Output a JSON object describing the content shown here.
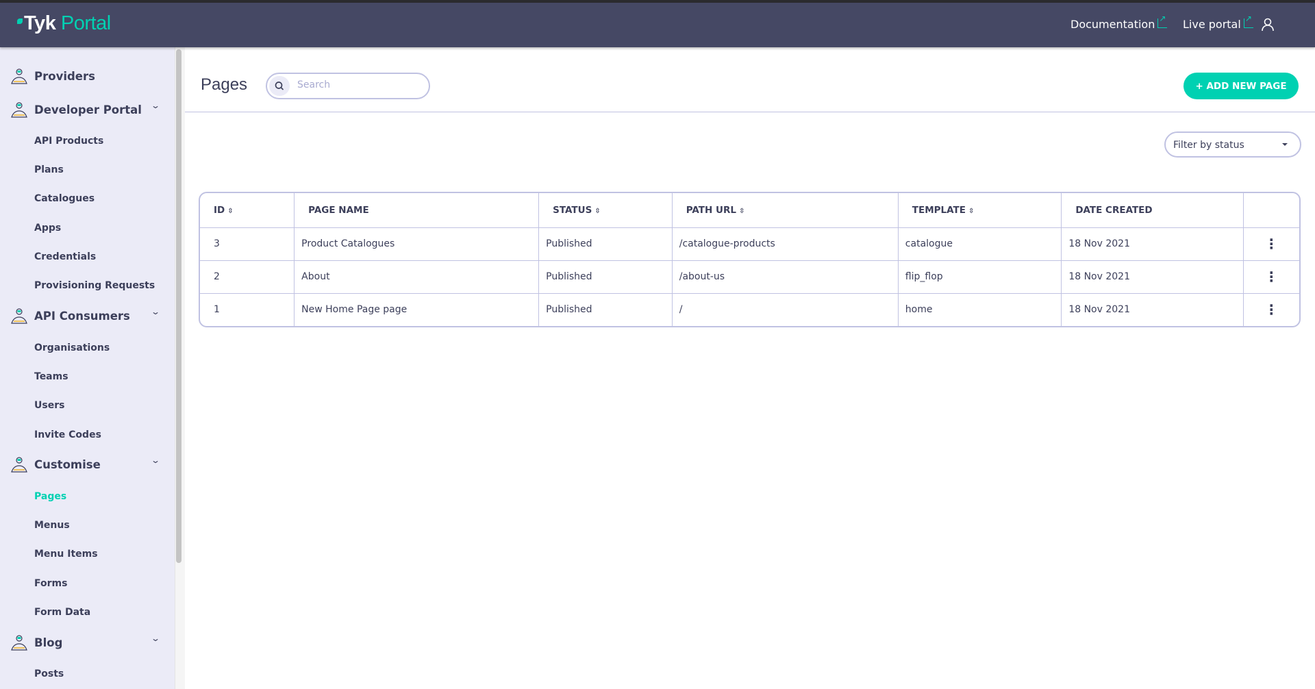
{
  "header": {
    "logo_text_1": "Tyk",
    "logo_text_2": "Portal",
    "documentation": "Documentation",
    "live_portal": "Live portal",
    "accent": "#00d1b2",
    "background": "#454864"
  },
  "sidebar": {
    "sections": [
      {
        "label": "Providers",
        "icon": "provider-hand-icon",
        "items": []
      },
      {
        "label": "Developer Portal",
        "icon": "developer-portal-icon",
        "items": [
          "API Products",
          "Plans",
          "Catalogues",
          "Apps",
          "Credentials",
          "Provisioning Requests"
        ]
      },
      {
        "label": "API Consumers",
        "icon": "consumers-network-icon",
        "items": [
          "Organisations",
          "Teams",
          "Users",
          "Invite Codes"
        ]
      },
      {
        "label": "Customise",
        "icon": "paintbrush-icon",
        "items": [
          "Pages",
          "Menus",
          "Menu Items",
          "Forms",
          "Form Data"
        ]
      },
      {
        "label": "Blog",
        "icon": "blog-writer-icon",
        "items": [
          "Posts"
        ]
      }
    ],
    "active": "Pages"
  },
  "main": {
    "title": "Pages",
    "search_placeholder": "Search",
    "add_button": "+ ADD NEW PAGE",
    "filter": "Filter by status",
    "table": {
      "columns": [
        {
          "label": "ID",
          "sortable": true
        },
        {
          "label": "PAGE NAME",
          "sortable": false
        },
        {
          "label": "STATUS",
          "sortable": true
        },
        {
          "label": "PATH URL",
          "sortable": true
        },
        {
          "label": "TEMPLATE",
          "sortable": true
        },
        {
          "label": "DATE CREATED",
          "sortable": false
        },
        {
          "label": "",
          "sortable": false
        }
      ],
      "rows": [
        [
          "3",
          "Product Catalogues",
          "Published",
          "/catalogue-products",
          "catalogue",
          "18 Nov 2021"
        ],
        [
          "2",
          "About",
          "Published",
          "/about-us",
          "flip_flop",
          "18 Nov 2021"
        ],
        [
          "1",
          "New Home Page page",
          "Published",
          "/",
          "home",
          "18 Nov 2021"
        ]
      ]
    }
  }
}
